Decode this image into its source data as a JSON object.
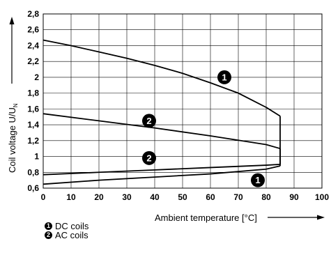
{
  "chart_data": {
    "type": "line",
    "xlabel": "Ambient temperature [°C]",
    "ylabel": "Coil voltage U/U",
    "ylabel_subscript": "N",
    "xlim": [
      0,
      100
    ],
    "ylim": [
      0.6,
      2.8
    ],
    "x_ticks": [
      "0",
      "10",
      "20",
      "30",
      "40",
      "50",
      "60",
      "70",
      "80",
      "90",
      "100"
    ],
    "y_ticks": [
      "0,6",
      "0,8",
      "1",
      "1,2",
      "1,4",
      "1,6",
      "1,8",
      "2",
      "2,2",
      "2,4",
      "2,6",
      "2,8"
    ],
    "grid": true,
    "series": [
      {
        "name": "DC coils",
        "marker": "1",
        "upper": {
          "x": [
            0,
            10,
            20,
            30,
            40,
            50,
            60,
            70,
            80,
            85
          ],
          "y": [
            2.47,
            2.4,
            2.32,
            2.24,
            2.15,
            2.05,
            1.93,
            1.8,
            1.62,
            1.51
          ]
        },
        "lower": {
          "x": [
            0,
            20,
            40,
            60,
            80,
            85
          ],
          "y": [
            0.65,
            0.7,
            0.74,
            0.78,
            0.84,
            0.88
          ]
        }
      },
      {
        "name": "AC coils",
        "marker": "2",
        "upper": {
          "x": [
            0,
            20,
            40,
            60,
            80,
            85
          ],
          "y": [
            1.54,
            1.45,
            1.36,
            1.26,
            1.15,
            1.1
          ]
        },
        "lower": {
          "x": [
            0,
            20,
            40,
            60,
            80,
            85
          ],
          "y": [
            0.77,
            0.8,
            0.83,
            0.86,
            0.89,
            0.9
          ]
        }
      }
    ],
    "markers": [
      {
        "label": "1",
        "x": 65,
        "y": 2.0
      },
      {
        "label": "2",
        "x": 38,
        "y": 1.45
      },
      {
        "label": "2",
        "x": 38,
        "y": 0.98
      },
      {
        "label": "1",
        "x": 77,
        "y": 0.7
      }
    ]
  },
  "legend": [
    {
      "marker": "1",
      "label": "DC coils"
    },
    {
      "marker": "2",
      "label": "AC coils"
    }
  ]
}
